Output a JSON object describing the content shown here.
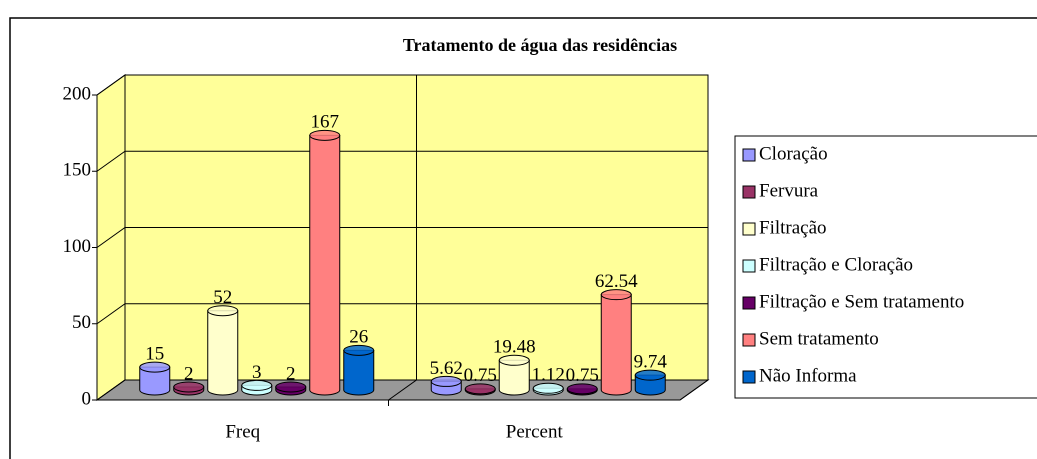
{
  "chart_data": {
    "type": "bar3d",
    "title": "Tratamento de água das residências",
    "categories": [
      "Freq",
      "Percent"
    ],
    "series": [
      {
        "name": "Cloração",
        "color": "#9999ff",
        "values": [
          15,
          5.62
        ]
      },
      {
        "name": "Fervura",
        "color": "#993366",
        "values": [
          2,
          0.75
        ]
      },
      {
        "name": "Filtração",
        "color": "#ffffcc",
        "values": [
          52,
          19.48
        ]
      },
      {
        "name": "Filtração e Cloração",
        "color": "#ccffff",
        "values": [
          3,
          1.12
        ]
      },
      {
        "name": "Filtração e Sem tratamento",
        "color": "#660066",
        "values": [
          2,
          0.75
        ]
      },
      {
        "name": "Sem tratamento",
        "color": "#ff8080",
        "values": [
          167,
          62.54
        ]
      },
      {
        "name": "Não Informa",
        "color": "#0066cc",
        "values": [
          26,
          9.74
        ]
      }
    ],
    "ylim": [
      0,
      200
    ],
    "yticks": [
      0,
      50,
      100,
      150,
      200
    ],
    "grid": true,
    "legend": "right"
  }
}
